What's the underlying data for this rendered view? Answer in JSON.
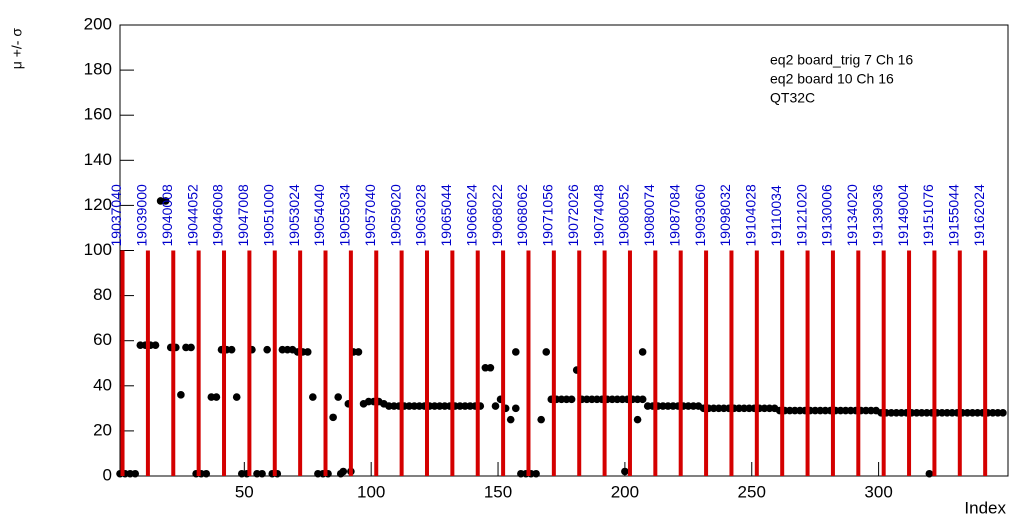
{
  "chart_data": {
    "type": "scatter",
    "title_lines": [
      "eq2 board_trig 7 Ch 16",
      "eq2 board 10 Ch 16",
      "QT32C"
    ],
    "x_label": "Index",
    "y_label": "μ +/- σ",
    "xlim": [
      1,
      351
    ],
    "ylim": [
      0,
      200
    ],
    "xticks": [
      50,
      100,
      150,
      200,
      250,
      300
    ],
    "yticks": [
      0,
      20,
      40,
      60,
      80,
      100,
      120,
      140,
      160,
      180,
      200
    ],
    "color": "#000000",
    "x": [
      1,
      3,
      5,
      7,
      9,
      11,
      13,
      15,
      17,
      19,
      21,
      23,
      25,
      27,
      29,
      31,
      33,
      35,
      37,
      39,
      41,
      43,
      45,
      47,
      49,
      51,
      53,
      55,
      57,
      59,
      61,
      63,
      65,
      67,
      69,
      71,
      73,
      75,
      77,
      79,
      81,
      83,
      85,
      87,
      89,
      91,
      93,
      95,
      97,
      99,
      101,
      103,
      105,
      107,
      109,
      111,
      113,
      115,
      117,
      119,
      121,
      123,
      125,
      127,
      129,
      131,
      133,
      135,
      137,
      139,
      141,
      143,
      145,
      147,
      149,
      151,
      153,
      155,
      157,
      159,
      161,
      163,
      165,
      167,
      169,
      171,
      173,
      175,
      177,
      179,
      181,
      183,
      185,
      187,
      189,
      191,
      193,
      195,
      197,
      199,
      201,
      203,
      205,
      207,
      209,
      211,
      213,
      215,
      217,
      219,
      221,
      223,
      225,
      227,
      229,
      231,
      233,
      235,
      237,
      239,
      241,
      243,
      245,
      247,
      249,
      251,
      253,
      255,
      257,
      259,
      261,
      263,
      265,
      267,
      269,
      271,
      273,
      275,
      277,
      279,
      281,
      283,
      285,
      287,
      289,
      291,
      293,
      295,
      297,
      299,
      301,
      303,
      305,
      307,
      309,
      311,
      313,
      315,
      317,
      319,
      321,
      323,
      325,
      327,
      329,
      331,
      333,
      335,
      337,
      339,
      341,
      343,
      345,
      347,
      349,
      207,
      205,
      320,
      157,
      200,
      88,
      92
    ],
    "values": [
      1,
      1,
      1,
      1,
      58,
      58,
      58,
      58,
      122,
      122,
      57,
      57,
      36,
      57,
      57,
      1,
      1,
      1,
      35,
      35,
      56,
      56,
      56,
      35,
      1,
      1,
      56,
      1,
      1,
      56,
      1,
      1,
      56,
      56,
      56,
      55,
      55,
      55,
      35,
      1,
      1,
      1,
      26,
      35,
      2,
      32,
      55,
      55,
      32,
      33,
      33,
      33,
      32,
      31,
      31,
      31,
      31,
      31,
      31,
      31,
      31,
      31,
      31,
      31,
      31,
      31,
      31,
      31,
      31,
      31,
      31,
      31,
      48,
      48,
      31,
      34,
      30,
      25,
      30,
      1,
      1,
      1,
      1,
      25,
      55,
      34,
      34,
      34,
      34,
      34,
      47,
      34,
      34,
      34,
      34,
      34,
      34,
      34,
      34,
      34,
      34,
      34,
      34,
      34,
      31,
      31,
      31,
      31,
      31,
      31,
      31,
      31,
      31,
      31,
      31,
      30,
      30,
      30,
      30,
      30,
      30,
      30,
      30,
      30,
      30,
      30,
      30,
      30,
      30,
      30,
      29,
      29,
      29,
      29,
      29,
      29,
      29,
      29,
      29,
      29,
      29,
      29,
      29,
      29,
      29,
      29,
      29,
      29,
      29,
      29,
      28,
      28,
      28,
      28,
      28,
      28,
      28,
      28,
      28,
      28,
      28,
      28,
      28,
      28,
      28,
      28,
      28,
      28,
      28,
      28,
      28,
      28,
      28,
      28,
      28,
      55,
      25,
      1,
      55,
      2,
      1,
      2
    ],
    "markers": {
      "color": "#d40000",
      "label_color": "#0000cc",
      "height": 100,
      "x": [
        2,
        12,
        22,
        32,
        42,
        52,
        62,
        72,
        82,
        92,
        102,
        112,
        122,
        132,
        142,
        152,
        162,
        172,
        182,
        192,
        202,
        212,
        222,
        232,
        242,
        252,
        262,
        272,
        282,
        292,
        302,
        312,
        322,
        332,
        342
      ],
      "labels": [
        "19037040",
        "19039000",
        "19040008",
        "19044052",
        "19046008",
        "19047008",
        "19051000",
        "19053024",
        "19054040",
        "19055034",
        "19057040",
        "19059020",
        "19063028",
        "19065044",
        "19066024",
        "19068022",
        "19068062",
        "19071056",
        "19072026",
        "19074048",
        "19080052",
        "19080074",
        "19087084",
        "19093060",
        "19098032",
        "19104028",
        "19110034",
        "19121020",
        "19130006",
        "19134020",
        "19139036",
        "19149004",
        "19151076",
        "19155044",
        "19162024"
      ]
    }
  }
}
